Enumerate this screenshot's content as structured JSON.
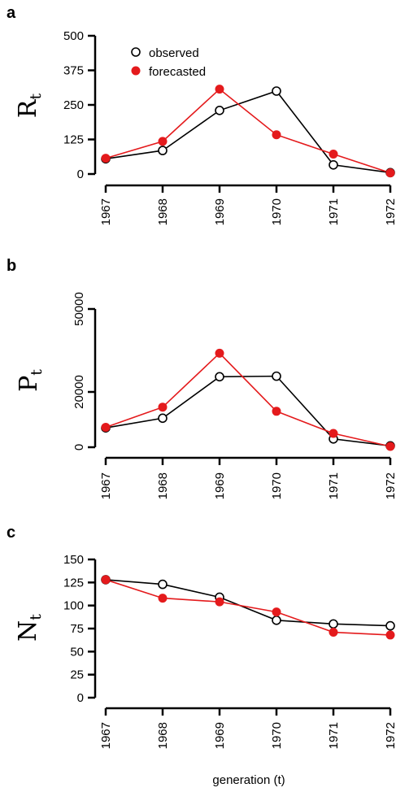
{
  "legend": {
    "observed": "observed",
    "forecasted": "forecasted"
  },
  "colors": {
    "observed_stroke": "#000000",
    "forecasted": "#e41a1c",
    "line": "#000000"
  },
  "x_title": "generation (t)",
  "chart_data": [
    {
      "type": "line",
      "panel": "a",
      "ylabel": "R",
      "ylabel_sub": "t",
      "categories": [
        "1967",
        "1968",
        "1969",
        "1970",
        "1971",
        "1972"
      ],
      "yticks": [
        "0",
        "125",
        "250",
        "375",
        "500"
      ],
      "ytick_values": [
        0,
        125,
        250,
        375,
        500
      ],
      "ytick_rotated": false,
      "ylim": [
        0,
        500
      ],
      "legend_position": "top-left",
      "series": [
        {
          "name": "observed",
          "values": [
            55,
            85,
            230,
            300,
            33,
            5
          ]
        },
        {
          "name": "forecasted",
          "values": [
            57,
            118,
            307,
            142,
            72,
            4
          ]
        }
      ]
    },
    {
      "type": "line",
      "panel": "b",
      "ylabel": "P",
      "ylabel_sub": "t",
      "categories": [
        "1967",
        "1968",
        "1969",
        "1970",
        "1971",
        "1972"
      ],
      "yticks": [
        "0",
        "20000",
        "50000"
      ],
      "ytick_values": [
        0,
        20000,
        50000
      ],
      "ytick_rotated": true,
      "ylim": [
        0,
        50000
      ],
      "series": [
        {
          "name": "observed",
          "values": [
            7000,
            10500,
            25500,
            25700,
            3000,
            500
          ]
        },
        {
          "name": "forecasted",
          "values": [
            7200,
            14500,
            34000,
            13000,
            5000,
            300
          ]
        }
      ]
    },
    {
      "type": "line",
      "panel": "c",
      "ylabel": "N",
      "ylabel_sub": "t",
      "categories": [
        "1967",
        "1968",
        "1969",
        "1970",
        "1971",
        "1972"
      ],
      "yticks": [
        "0",
        "25",
        "50",
        "75",
        "100",
        "125",
        "150"
      ],
      "ytick_values": [
        0,
        25,
        50,
        75,
        100,
        125,
        150
      ],
      "ytick_rotated": false,
      "ylim": [
        0,
        150
      ],
      "series": [
        {
          "name": "observed",
          "values": [
            128,
            123,
            109,
            84,
            80,
            78
          ]
        },
        {
          "name": "forecasted",
          "values": [
            128,
            108,
            104,
            93,
            71,
            68
          ]
        }
      ]
    }
  ]
}
